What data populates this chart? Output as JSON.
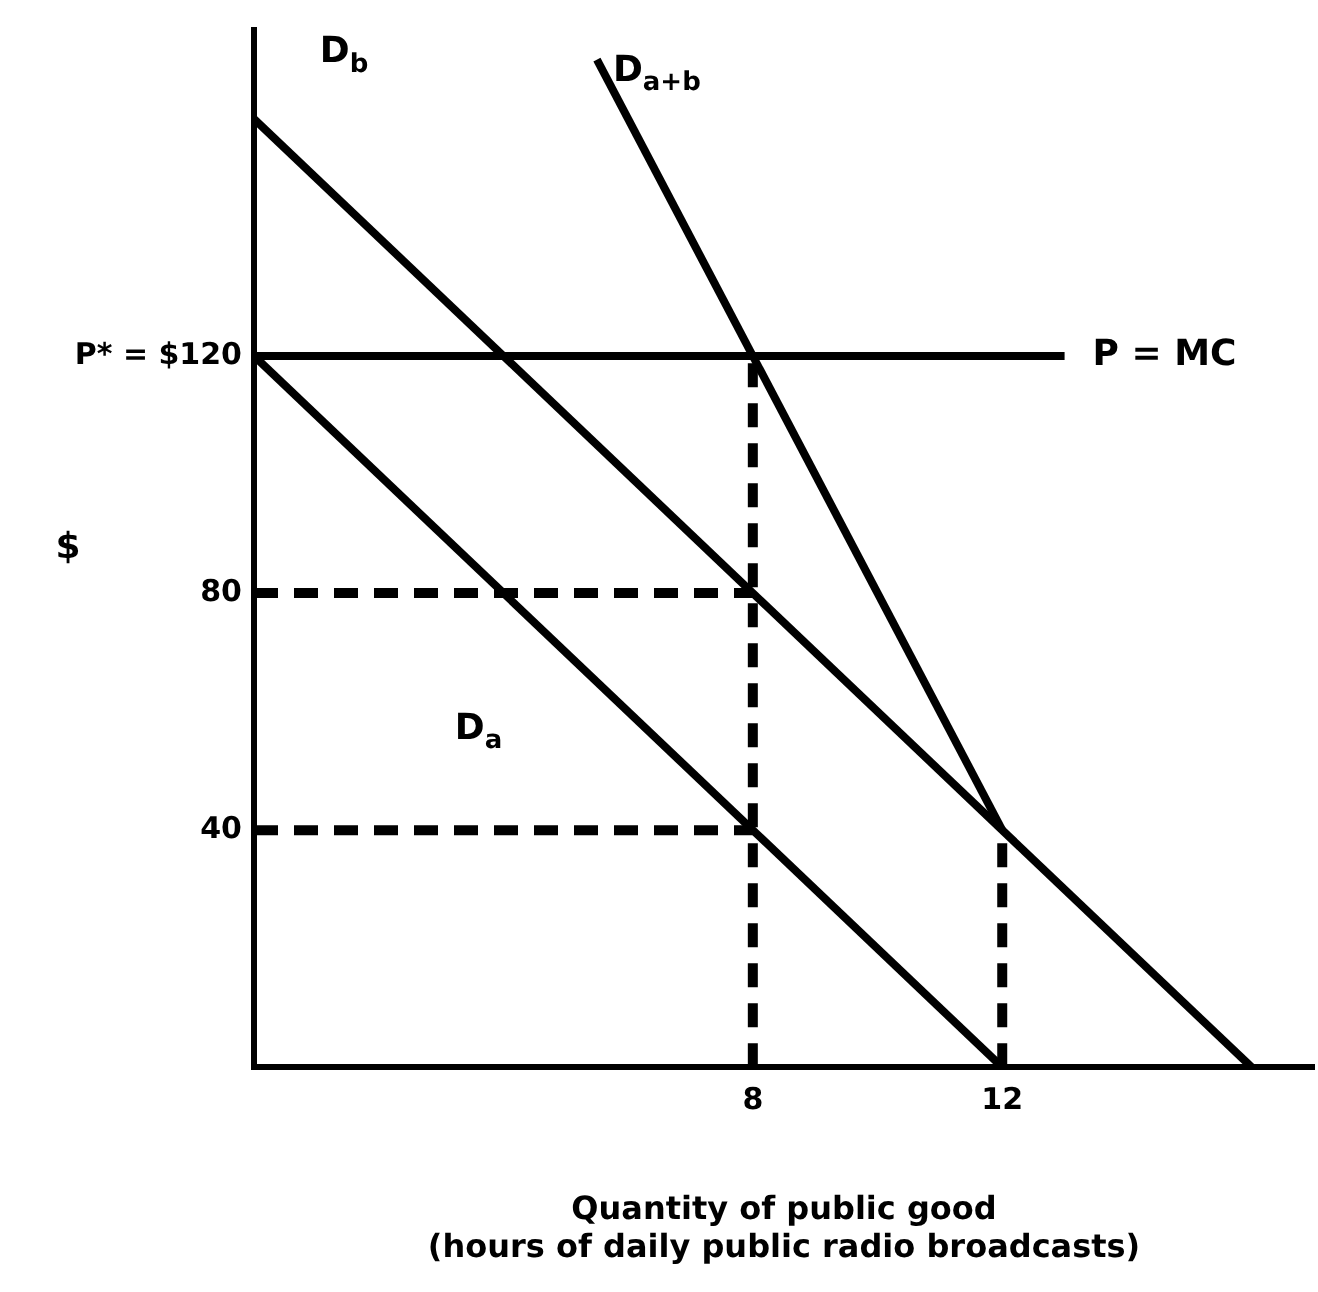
{
  "chart_data": {
    "type": "line",
    "xlabel": "Quantity of public good\n(hours of daily public radio broadcasts)",
    "ylabel": "$",
    "xlim": [
      0,
      17
    ],
    "ylim": [
      0,
      175
    ],
    "xticks": [
      8,
      12
    ],
    "yticks": [
      40,
      80,
      {
        "value": 120,
        "label": "P* = $120"
      }
    ],
    "grid": false,
    "legend": false,
    "marker": "none",
    "series": [
      {
        "name": "D$_{a}$",
        "color": "#000000",
        "x": [
          0,
          12
        ],
        "values": [
          120,
          0
        ]
      },
      {
        "name": "D$_{b}$",
        "color": "#000000",
        "x": [
          0,
          16
        ],
        "values": [
          160,
          0
        ]
      },
      {
        "name": "D$_{a+b}$",
        "color": "#000000",
        "x": [
          5.5,
          12
        ],
        "values": [
          170,
          40
        ]
      },
      {
        "name": "P = MC",
        "color": "#000000",
        "x": [
          0,
          13
        ],
        "values": [
          120,
          120
        ]
      },
      {
        "color": "#000000",
        "line_style": "dashed",
        "x": [
          0,
          8
        ],
        "values": [
          80,
          80
        ]
      },
      {
        "color": "#000000",
        "line_style": "dashed",
        "x": [
          0,
          8
        ],
        "values": [
          40,
          40
        ]
      },
      {
        "color": "#000000",
        "line_style": "dashed",
        "x": [
          8,
          8
        ],
        "values": [
          0,
          120
        ]
      },
      {
        "color": "#000000",
        "line_style": "dashed",
        "x": [
          12,
          12
        ],
        "values": [
          0,
          40
        ]
      }
    ]
  }
}
